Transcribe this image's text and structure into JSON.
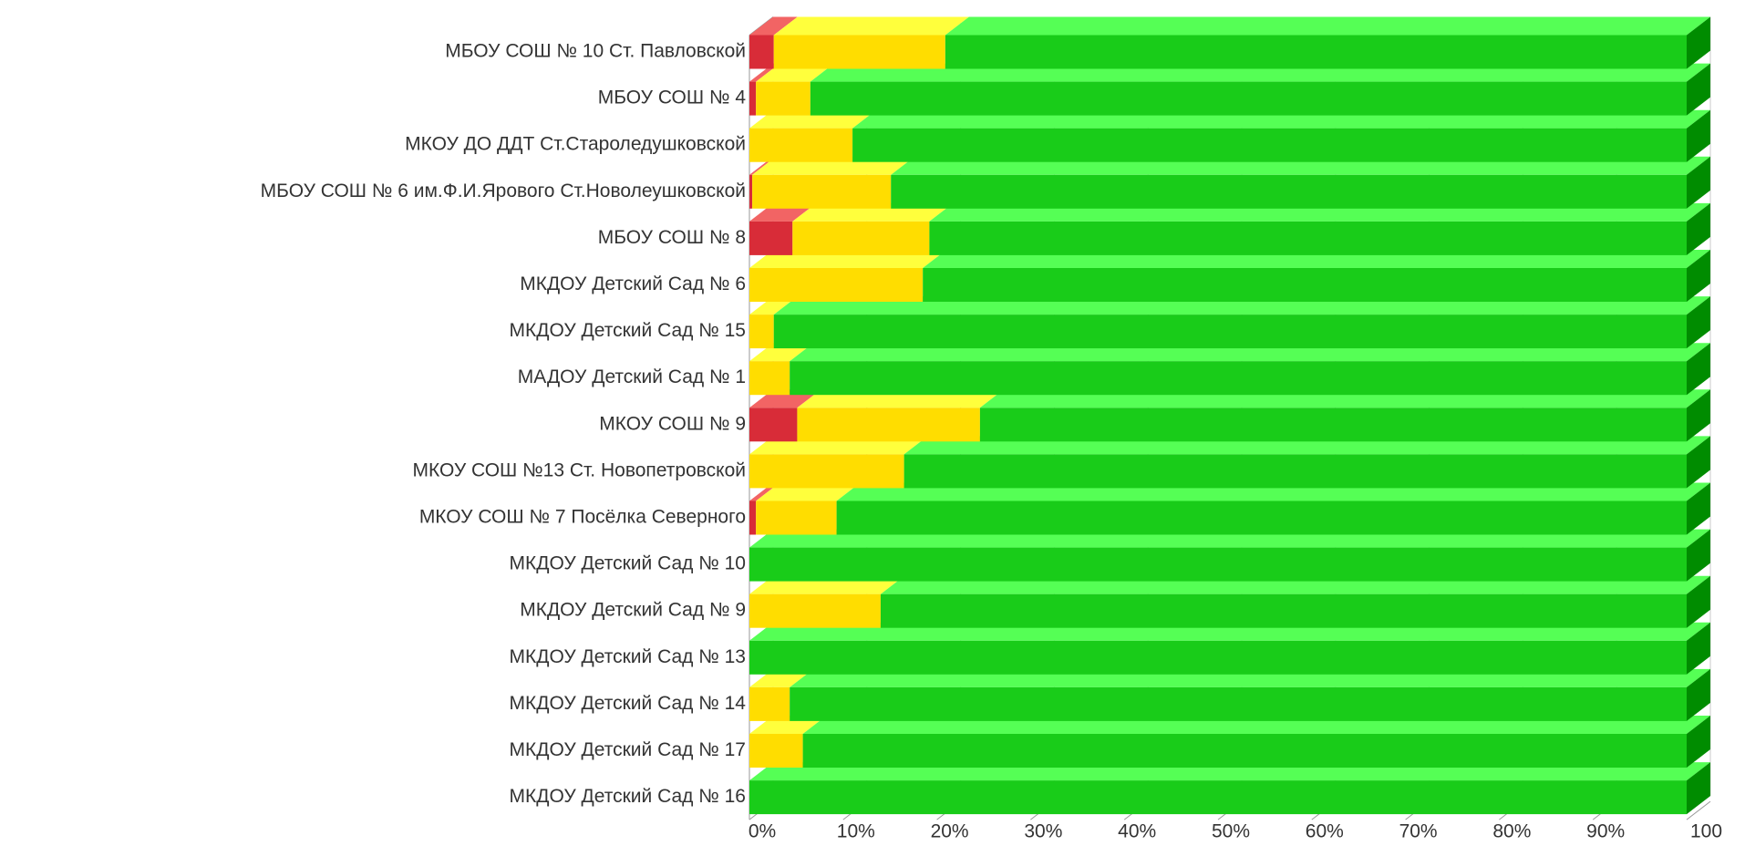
{
  "chart_data": {
    "type": "stacked-bar-3d-horizontal",
    "categories": [
      "МБОУ СОШ № 10 Ст. Павловской",
      "МБОУ СОШ № 4",
      "МКОУ ДО ДДТ Ст.Староледушковской",
      "МБОУ СОШ № 6 им.Ф.И.Ярового Ст.Новолеушковской",
      "МБОУ СОШ № 8",
      "МКДОУ Детский Сад № 6",
      "МКДОУ Детский Сад № 15",
      "МАДОУ Детский Сад № 1",
      "МКОУ СОШ № 9",
      "МКОУ СОШ №13 Ст. Новопетровской",
      "МКОУ СОШ № 7 Посёлка Северного",
      "МКДОУ Детский Сад № 10",
      "МКДОУ Детский Сад № 9",
      "МКДОУ Детский Сад № 13",
      "МКДОУ Детский Сад № 14",
      "МКДОУ Детский Сад № 17",
      "МКДОУ Детский Сад № 16"
    ],
    "series": [
      {
        "color": "#d82c38",
        "top_color": "#f26464",
        "values": [
          2.6,
          0.7,
          0,
          0.3,
          4.6,
          0,
          0,
          0,
          5.1,
          0,
          0.7,
          0,
          0,
          0,
          0,
          0,
          0
        ]
      },
      {
        "color": "#ffdd00",
        "top_color": "#ffff3c",
        "values": [
          18.3,
          5.8,
          11.0,
          14.8,
          14.6,
          18.5,
          2.6,
          4.3,
          19.5,
          16.5,
          8.6,
          0,
          14.0,
          0,
          4.3,
          5.7,
          0
        ]
      },
      {
        "color": "#19cc19",
        "top_color": "#55ff55",
        "side_color": "#008c00",
        "values": [
          79.1,
          93.5,
          89.0,
          84.9,
          80.8,
          81.5,
          97.4,
          95.7,
          75.4,
          83.5,
          90.7,
          100,
          86.0,
          100,
          95.7,
          94.3,
          100
        ]
      }
    ],
    "xlim": [
      0,
      100
    ],
    "xticks": [
      {
        "value": 0,
        "label": "0%"
      },
      {
        "value": 10,
        "label": "10%"
      },
      {
        "value": 20,
        "label": "20%"
      },
      {
        "value": 30,
        "label": "30%"
      },
      {
        "value": 40,
        "label": "40%"
      },
      {
        "value": 50,
        "label": "50%"
      },
      {
        "value": 60,
        "label": "60%"
      },
      {
        "value": 70,
        "label": "70%"
      },
      {
        "value": 80,
        "label": "80%"
      },
      {
        "value": 90,
        "label": "90%"
      },
      100
    ],
    "grid": true
  }
}
